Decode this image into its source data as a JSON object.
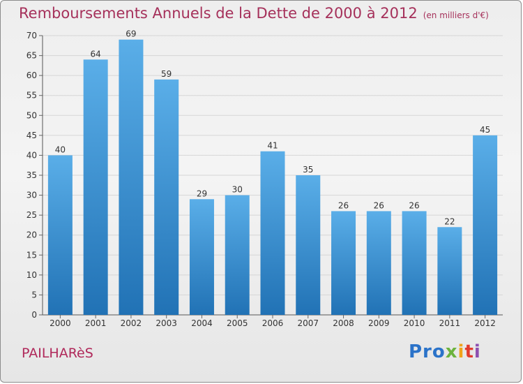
{
  "title": "Remboursements Annuels de la Dette de 2000 à 2012",
  "subtitle": "(en milliers d'€)",
  "commune": "PAILHARèS",
  "logo": {
    "p1": "Pro",
    "p2": "x",
    "p3": "i",
    "p4": "t",
    "p5": "i"
  },
  "colors": {
    "bar_top": "#5aaee8",
    "bar_bottom": "#2172b5",
    "title": "#a5305a",
    "grid": "#d6d6d6"
  },
  "chart_data": {
    "type": "bar",
    "title": "Remboursements Annuels de la Dette de 2000 à 2012",
    "xlabel": "",
    "ylabel": "",
    "categories": [
      "2000",
      "2001",
      "2002",
      "2003",
      "2004",
      "2005",
      "2006",
      "2007",
      "2008",
      "2009",
      "2010",
      "2011",
      "2012"
    ],
    "values": [
      40,
      64,
      69,
      59,
      29,
      30,
      41,
      35,
      26,
      26,
      26,
      22,
      45
    ],
    "ylim": [
      0,
      70
    ],
    "yticks": [
      0,
      5,
      10,
      15,
      20,
      25,
      30,
      35,
      40,
      45,
      50,
      55,
      60,
      65,
      70
    ],
    "grid": true
  }
}
